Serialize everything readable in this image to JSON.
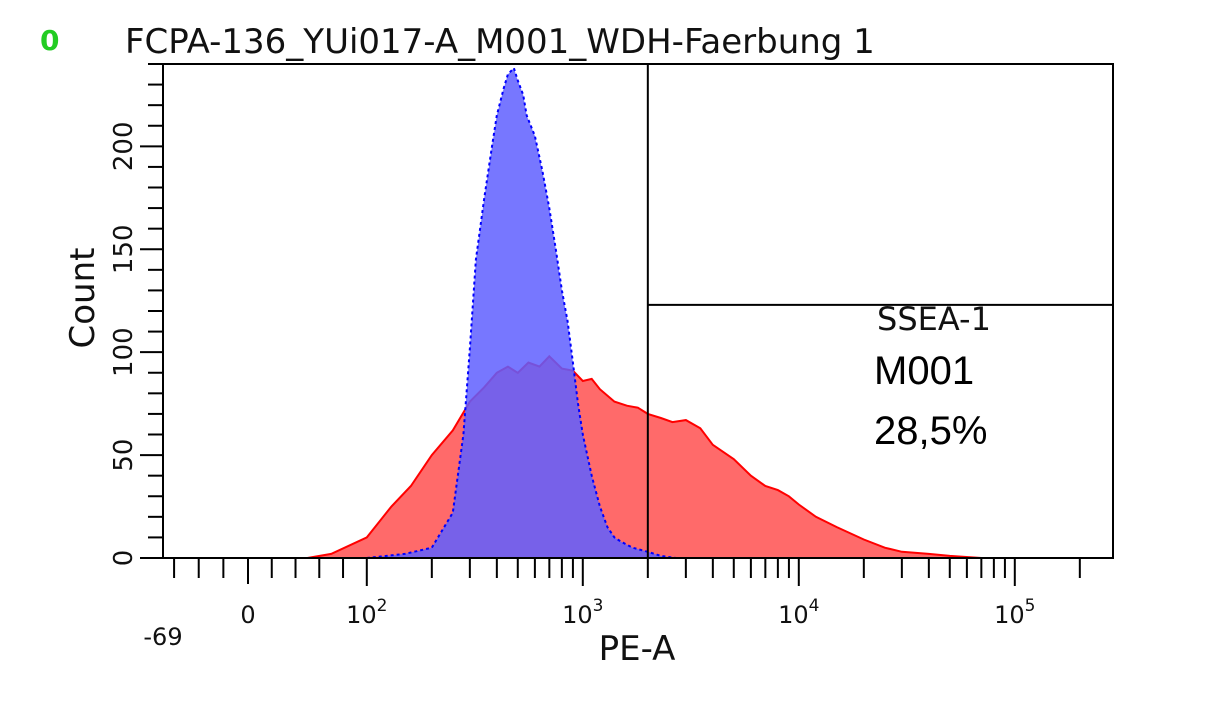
{
  "header": {
    "indicator": "0",
    "indicator_color": "#22cc22",
    "title": "FCPA-136_YUi017-A_M001_WDH-Faerbung 1"
  },
  "annotations": {
    "gate_label": "SSEA-1",
    "marker_name": "M001",
    "marker_percent": "28,5%"
  },
  "chart_data": {
    "type": "area",
    "title": "FCPA-136_YUi017-A_M001_WDH-Faerbung 1",
    "xlabel": "PE-A",
    "ylabel": "Count",
    "x_scale": "logicle",
    "xlim": [
      -69,
      262144
    ],
    "ylim": [
      0,
      240
    ],
    "yticks": [
      0,
      50,
      100,
      150,
      200
    ],
    "xtick_labels": [
      {
        "value": -69,
        "label": "-69"
      },
      {
        "value": 0,
        "label": "0"
      },
      {
        "value": 100,
        "label": "10",
        "exp": "2"
      },
      {
        "value": 1000,
        "label": "10",
        "exp": "3"
      },
      {
        "value": 10000,
        "label": "10",
        "exp": "4"
      },
      {
        "value": 100000,
        "label": "10",
        "exp": "5"
      }
    ],
    "gate": {
      "name": "SSEA-1",
      "x_from": 2000,
      "x_to": 262144,
      "y_level": 123
    },
    "series": [
      {
        "color": "#ff6a6a",
        "stroke": "#ff0000",
        "x": [
          50,
          70,
          100,
          130,
          160,
          200,
          250,
          300,
          350,
          400,
          450,
          500,
          560,
          630,
          700,
          800,
          900,
          1000,
          1100,
          1200,
          1400,
          1600,
          1800,
          2000,
          2300,
          2600,
          3000,
          3500,
          4000,
          5000,
          6000,
          7000,
          8000,
          9000,
          10000,
          12000,
          15000,
          20000,
          25000,
          30000,
          40000,
          50000,
          70000
        ],
        "y": [
          0,
          2,
          10,
          25,
          35,
          50,
          62,
          76,
          83,
          90,
          93,
          90,
          95,
          93,
          98,
          92,
          91,
          86,
          87,
          82,
          76,
          74,
          73,
          70,
          68,
          66,
          67,
          63,
          55,
          48,
          40,
          35,
          33,
          30,
          26,
          20,
          15,
          9,
          5,
          3,
          2,
          1,
          0
        ]
      },
      {
        "color": "#5f5fff",
        "stroke": "#0000ff",
        "x": [
          100,
          150,
          200,
          250,
          280,
          300,
          320,
          350,
          380,
          400,
          430,
          450,
          480,
          500,
          530,
          550,
          600,
          650,
          700,
          750,
          800,
          850,
          900,
          950,
          1000,
          1100,
          1200,
          1300,
          1400,
          1500,
          1700,
          2000,
          2300,
          2700
        ],
        "y": [
          0,
          2,
          5,
          22,
          60,
          102,
          145,
          175,
          200,
          215,
          228,
          235,
          238,
          232,
          225,
          215,
          205,
          188,
          170,
          150,
          130,
          115,
          95,
          75,
          60,
          40,
          25,
          15,
          10,
          8,
          5,
          3,
          1,
          0
        ]
      }
    ]
  }
}
